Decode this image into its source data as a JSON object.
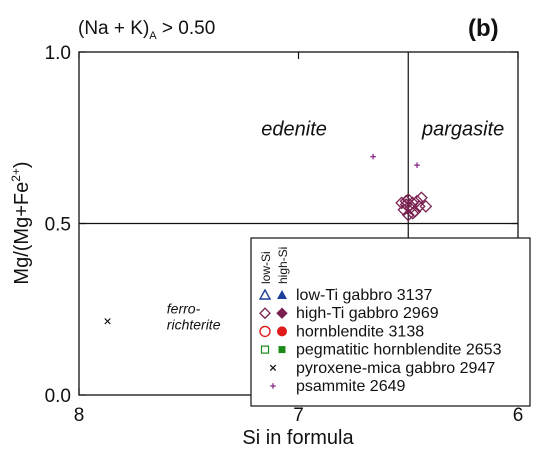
{
  "chart_data": {
    "type": "scatter",
    "panel_label": "(b)",
    "condition": {
      "text": "(Na + K)",
      "subscript": "A",
      "suffix": " > 0.50"
    },
    "xlabel": "Si in formula",
    "ylabel": {
      "text": "Mg/(Mg+Fe",
      "superscript": "2+",
      "suffix": ")"
    },
    "xlim": [
      8,
      6
    ],
    "ylim": [
      0.0,
      1.0
    ],
    "x_ticks": [
      {
        "value": 8,
        "label": "8"
      },
      {
        "value": 7,
        "label": "7"
      },
      {
        "value": 6,
        "label": "6"
      }
    ],
    "y_ticks": [
      {
        "value": 0.0,
        "label": "0.0"
      },
      {
        "value": 0.5,
        "label": "0.5"
      },
      {
        "value": 1.0,
        "label": "1.0"
      }
    ],
    "boundaries": {
      "x": 6.5,
      "y": 0.5
    },
    "fields": [
      {
        "label": "edenite",
        "x": 7.02,
        "y": 0.757
      },
      {
        "label": "pargasite",
        "x": 6.25,
        "y": 0.757
      }
    ],
    "small_field": {
      "lines": [
        "ferro-",
        "richterite"
      ],
      "x": 7.6,
      "y": 0.22
    },
    "legend": {
      "column_headers": [
        "low-Si",
        "high-Si"
      ],
      "entries": [
        {
          "label": "low-Ti gabbro 3137",
          "marker": "triangle",
          "color": "#1f3f9a"
        },
        {
          "label": "high-Ti gabbro 2969",
          "marker": "diamond",
          "color": "#7a2050"
        },
        {
          "label": "hornblendite 3138",
          "marker": "circle",
          "color": "#e01b1b"
        },
        {
          "label": "pegmatitic hornblendite 2653",
          "marker": "square",
          "color": "#1a8a1a"
        },
        {
          "label": "pyroxene-mica gabbro 2947",
          "marker": "x",
          "color": "#111111"
        },
        {
          "label": "psammite 2649",
          "marker": "plus",
          "color": "#8a2b8a"
        }
      ]
    },
    "series": [
      {
        "name": "high-Ti gabbro 2969",
        "marker": "diamond-open",
        "color": "#7a2050",
        "points": [
          [
            6.5,
            0.57
          ],
          [
            6.48,
            0.56
          ],
          [
            6.51,
            0.555
          ],
          [
            6.46,
            0.565
          ],
          [
            6.49,
            0.545
          ],
          [
            6.44,
            0.575
          ],
          [
            6.47,
            0.535
          ],
          [
            6.52,
            0.54
          ],
          [
            6.5,
            0.525
          ],
          [
            6.53,
            0.56
          ],
          [
            6.45,
            0.55
          ],
          [
            6.48,
            0.53
          ],
          [
            6.42,
            0.55
          ],
          [
            6.51,
            0.565
          ]
        ]
      },
      {
        "name": "pyroxene-mica gabbro 2947",
        "marker": "x",
        "color": "#111111",
        "points": [
          [
            7.87,
            0.215
          ]
        ]
      },
      {
        "name": "psammite 2649",
        "marker": "plus",
        "color": "#8a2b8a",
        "points": [
          [
            6.66,
            0.695
          ],
          [
            6.46,
            0.67
          ]
        ]
      }
    ]
  }
}
